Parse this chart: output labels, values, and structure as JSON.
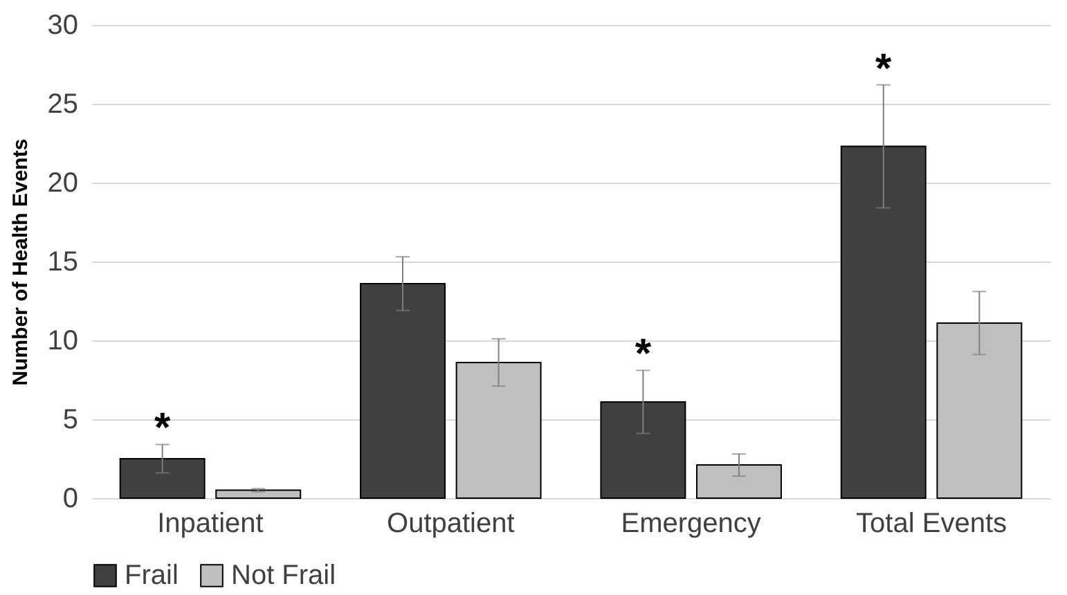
{
  "chart_data": {
    "type": "bar",
    "ylabel": "Number of Health Events",
    "categories": [
      "Inpatient",
      "Outpatient",
      "Emergency",
      "Total Events"
    ],
    "series": [
      {
        "name": "Frail",
        "color": "#404040",
        "values": [
          2.5,
          13.6,
          6.1,
          22.3
        ],
        "errors": [
          0.9,
          1.7,
          2.0,
          3.9
        ]
      },
      {
        "name": "Not Frail",
        "color": "#bfbfbf",
        "values": [
          0.5,
          8.6,
          2.1,
          11.1
        ],
        "errors": [
          0.1,
          1.5,
          0.7,
          2.0
        ]
      }
    ],
    "ylim": [
      0,
      30
    ],
    "yticks": [
      0,
      5,
      10,
      15,
      20,
      25,
      30
    ],
    "grid": "y",
    "legend": "bottom",
    "annotations": [
      {
        "text": "*",
        "x": "Inpatient",
        "y": 2.5
      },
      {
        "text": "*",
        "x": "Emergency",
        "y": 6.1
      },
      {
        "text": "*",
        "x": "Total Events",
        "y": 22.3
      }
    ]
  }
}
